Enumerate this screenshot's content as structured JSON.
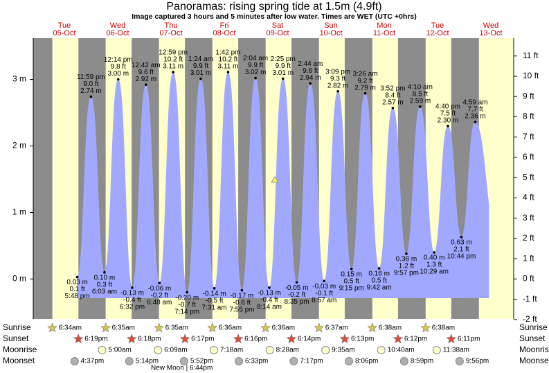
{
  "chart_data": {
    "type": "area",
    "title": "Panoramas: rising  spring tide at 1.5m (4.9ft)",
    "subtitle": "Image captured 3 hours and 5 minutes after low water. Times are WET (UTC +0hrs)",
    "days": [
      {
        "name": "Tue",
        "date": "05-Oct"
      },
      {
        "name": "Wed",
        "date": "06-Oct"
      },
      {
        "name": "Thu",
        "date": "07-Oct"
      },
      {
        "name": "Fri",
        "date": "08-Oct"
      },
      {
        "name": "Sat",
        "date": "09-Oct"
      },
      {
        "name": "Sun",
        "date": "10-Oct"
      },
      {
        "name": "Mon",
        "date": "11-Oct"
      },
      {
        "name": "Tue",
        "date": "12-Oct"
      },
      {
        "name": "Wed",
        "date": "13-Oct"
      }
    ],
    "color": "#a0a8ff",
    "day_color": "#ffffcc",
    "night_color": "#8c8c8c",
    "tide_times": [
      "5:48 pm",
      "11:59 pm",
      "6:03 am",
      "12:14 pm",
      "6:32 pm",
      "12:42 am",
      "6:48 am",
      "12:59 pm",
      "7:14 pm",
      "1:24 am",
      "7:31 am",
      "1:42 pm",
      "7:55 pm",
      "2:04 am",
      "8:14 am",
      "2:25 pm",
      "8:35 pm",
      "2:44 am",
      "8:57 am",
      "3:09 pm",
      "9:15 pm",
      "3:26 am",
      "9:42 am",
      "3:52 pm",
      "9:57 pm",
      "4:10 am",
      "10:29 am",
      "4:40 pm",
      "10:44 pm",
      "4:59 am"
    ],
    "values": [
      0.03,
      2.74,
      0.1,
      3.0,
      -0.13,
      2.92,
      -0.06,
      3.11,
      -0.2,
      3.01,
      -0.14,
      3.11,
      -0.17,
      3.02,
      -0.13,
      3.01,
      -0.05,
      2.94,
      -0.03,
      2.82,
      0.15,
      2.79,
      0.16,
      2.57,
      0.38,
      2.59,
      0.4,
      2.3,
      0.63,
      2.36
    ],
    "value_labels": [
      "0.03 m",
      "2.74 m",
      "0.10 m",
      "3.00 m",
      "-0.13 m",
      "2.92 m",
      "-0.06 m",
      "3.11 m",
      "-0.20 m",
      "3.01 m",
      "-0.14 m",
      "3.11 m",
      "-0.17 m",
      "3.02 m",
      "-0.13 m",
      "3.01 m",
      "-0.05 m",
      "2.94 m",
      "-0.03 m",
      "2.82 m",
      "0.15 m",
      "2.79 m",
      "0.16 m",
      "2.57 m",
      "0.38 m",
      "2.59 m",
      "0.40 m",
      "2.30 m",
      "0.63 m",
      "2.36 m"
    ],
    "ft_labels": [
      "0.1 ft",
      "9.0 ft",
      "0.3 ft",
      "9.8 ft",
      "-0.4 ft",
      "9.6 ft",
      "-0.2 ft",
      "10.2 ft",
      "-0.7 ft",
      "9.9 ft",
      "-0.5 ft",
      "10.2 ft",
      "-0.6 ft",
      "9.9 ft",
      "-0.4 ft",
      "9.9 ft",
      "-0.2 ft",
      "9.6 ft",
      "-0.1 ft",
      "9.3 ft",
      "0.5 ft",
      "9.2 ft",
      "0.5 ft",
      "8.4 ft",
      "1.2 ft",
      "8.5 ft",
      "1.3 ft",
      "7.5 ft",
      "2.1 ft",
      "7.7 ft"
    ],
    "ylim": [
      -0.6,
      3.62
    ],
    "yticks": [
      {
        "value": 0,
        "label": "0 m"
      },
      {
        "value": 1,
        "label": "1 m"
      },
      {
        "value": 2,
        "label": "2 m"
      },
      {
        "value": 3,
        "label": "3 m"
      }
    ],
    "y2lim": [
      -1.97,
      11.88
    ],
    "y2ticks": [
      {
        "value": -2,
        "label": "-2 ft"
      },
      {
        "value": -1,
        "label": "-1 ft"
      },
      {
        "value": 0,
        "label": "0 ft"
      },
      {
        "value": 1,
        "label": "1 ft"
      },
      {
        "value": 2,
        "label": "2 ft"
      },
      {
        "value": 3,
        "label": "3 ft"
      },
      {
        "value": 4,
        "label": "4 ft"
      },
      {
        "value": 5,
        "label": "5 ft"
      },
      {
        "value": 6,
        "label": "6 ft"
      },
      {
        "value": 7,
        "label": "7 ft"
      },
      {
        "value": 8,
        "label": "8 ft"
      },
      {
        "value": 9,
        "label": "9 ft"
      },
      {
        "value": 10,
        "label": "10 ft"
      },
      {
        "value": 11,
        "label": "11 ft"
      }
    ],
    "astro": [
      {
        "label": "Sunrise",
        "times": [
          "6:34am",
          "6:35am",
          "6:35am",
          "6:36am",
          "6:36am",
          "6:37am",
          "6:38am",
          "6:38am"
        ]
      },
      {
        "label": "Sunset",
        "times": [
          "6:19pm",
          "6:18pm",
          "6:17pm",
          "6:16pm",
          "6:14pm",
          "6:13pm",
          "6:12pm",
          "6:11pm"
        ]
      },
      {
        "label": "Moonrise",
        "times": [
          null,
          "5:00am",
          "6:09am",
          "7:18am",
          "8:28am",
          "9:35am",
          "10:40am",
          "11:38am"
        ]
      },
      {
        "label": "Moonset",
        "times": [
          "4:37pm",
          "5:14pm",
          "5:52pm",
          "6:33pm",
          "7:17pm",
          "8:06pm",
          "8:59pm",
          "9:56pm"
        ]
      }
    ],
    "moon_phase": "New Moon | 6:44pm"
  }
}
